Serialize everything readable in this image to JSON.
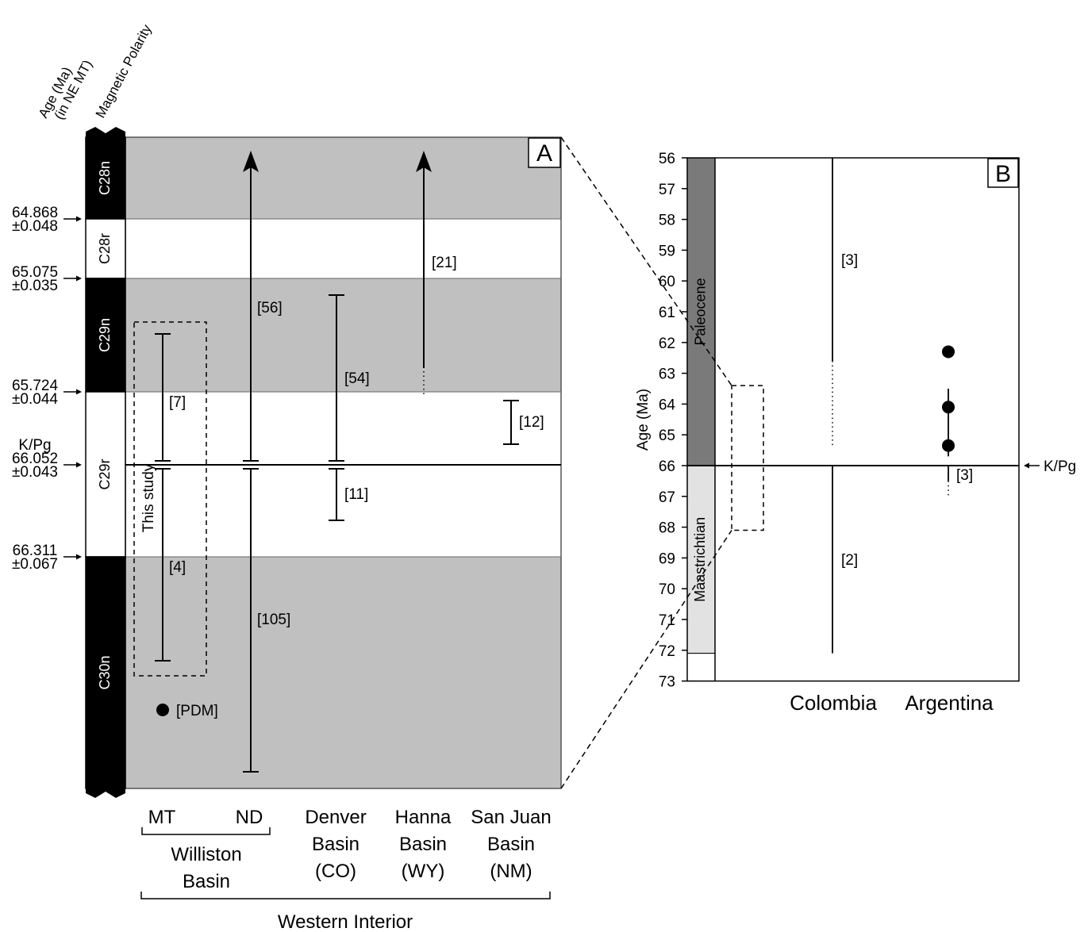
{
  "chart_data": [
    {
      "panel": "A",
      "type": "range",
      "column_header_labels": [
        "Age (Ma)",
        "(in NE MT)",
        "Magnetic Polarity"
      ],
      "chrons": [
        {
          "name": "C28n",
          "polarity": "normal"
        },
        {
          "name": "C28r",
          "polarity": "reversed"
        },
        {
          "name": "C29n",
          "polarity": "normal"
        },
        {
          "name": "C29r",
          "polarity": "reversed"
        },
        {
          "name": "C30n",
          "polarity": "normal"
        }
      ],
      "boundary_ages": [
        {
          "age": "64.868",
          "err": "±0.048"
        },
        {
          "age": "65.075",
          "err": "±0.035"
        },
        {
          "age": "65.724",
          "err": "±0.044"
        },
        {
          "age": "66.052",
          "err": "±0.043",
          "name": "K/Pg"
        },
        {
          "age": "66.311",
          "err": "±0.067"
        }
      ],
      "ranges": [
        {
          "column": "MT",
          "label": "[7]",
          "from": "C29n (upper)",
          "to": "K/Pg"
        },
        {
          "column": "MT",
          "label": "[4]",
          "from": "K/Pg",
          "to": "C30n (upper)"
        },
        {
          "column": "ND",
          "label": "[56]",
          "from": "K/Pg",
          "to": "C28n and above"
        },
        {
          "column": "ND",
          "label": "[105]",
          "from": "C30n (lower)",
          "to": "K/Pg"
        },
        {
          "column": "Denver Basin (CO)",
          "label": "[54]",
          "from": "K/Pg",
          "to": "C29n (top)"
        },
        {
          "column": "Denver Basin (CO)",
          "label": "[11]",
          "from": "C29r (lower)",
          "to": "K/Pg"
        },
        {
          "column": "Hanna Basin (WY)",
          "label": "[21]",
          "from": "C29n (uncertain base)",
          "to": "C28n and above"
        },
        {
          "column": "San Juan Basin (NM)",
          "label": "[12]",
          "from": "C29r (upper)",
          "to": "C29r (upper)"
        }
      ],
      "points": [
        {
          "column": "MT",
          "label": "[PDM]",
          "chron": "C30n"
        }
      ],
      "study_box_label": "This study",
      "columns": [
        "MT",
        "ND",
        "Denver\nBasin\n(CO)",
        "Hanna\nBasin\n(WY)",
        "San Juan\nBasin\n(NM)"
      ],
      "group_labels": [
        "Williston\nBasin",
        "Western Interior"
      ]
    },
    {
      "panel": "B",
      "type": "range",
      "ylabel": "Age (Ma)",
      "ylim": [
        56,
        73
      ],
      "yticks": [
        56,
        57,
        58,
        59,
        60,
        61,
        62,
        63,
        64,
        65,
        66,
        67,
        68,
        69,
        70,
        71,
        72,
        73
      ],
      "epochs": [
        {
          "name": "Paleocene",
          "from": 56,
          "to": 66,
          "color": "#7a7a7a"
        },
        {
          "name": "Maastrichtian",
          "from": 66,
          "to": 72.1,
          "color": "#e2e2e2"
        }
      ],
      "kpg_label": "K/Pg",
      "kpg_age": 66,
      "categories": [
        "Colombia",
        "Argentina"
      ],
      "ranges": [
        {
          "category": "Colombia",
          "label": "[3]",
          "solid": [
            56,
            62.6
          ],
          "dotted": [
            62.6,
            65.4
          ]
        },
        {
          "category": "Colombia",
          "label": "[2]",
          "solid": [
            66,
            72.1
          ]
        }
      ],
      "argentina_points": [
        62.3,
        64.1,
        65.35
      ],
      "argentina_segment": [
        63.5,
        65.7
      ],
      "argentina_lower": {
        "label": "[3]",
        "solid": [
          66,
          66.5
        ],
        "dotted": [
          66.5,
          67.0
        ]
      },
      "zoom_box": [
        63.4,
        68.1
      ]
    }
  ]
}
